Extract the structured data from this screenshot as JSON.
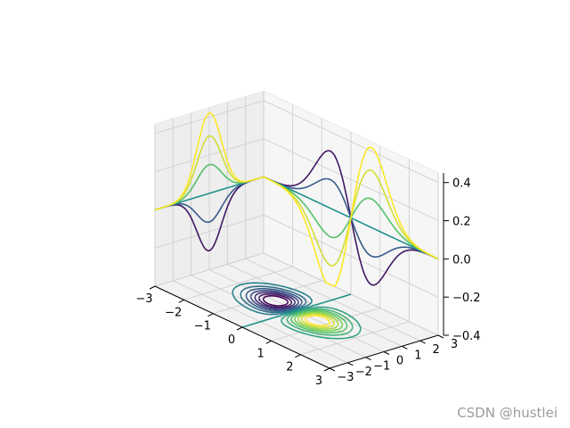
{
  "chart_data": {
    "type": "contour3d",
    "title": "",
    "xlabel": "",
    "ylabel": "",
    "zlabel": "",
    "xlim": [
      -3,
      3
    ],
    "ylim": [
      -3,
      3
    ],
    "zlim": [
      -0.4,
      0.45
    ],
    "grid": true,
    "function": "z = x * exp(-x^2 - y^2)",
    "projections": [
      "contour on floor (z offset)",
      "contour on back wall (x = -3)",
      "contour on side wall (y = 3)"
    ],
    "colormap": "viridis",
    "x_ticks": [
      "−3",
      "−2",
      "−1",
      "0",
      "1",
      "2",
      "3"
    ],
    "y_ticks": [
      "−3",
      "−2",
      "−1",
      "0",
      "1",
      "2",
      "3"
    ],
    "z_ticks": [
      "−0.4",
      "−0.2",
      "0.0",
      "0.2",
      "0.4"
    ],
    "floor_contours": {
      "levels": [
        -0.35,
        -0.3,
        -0.25,
        -0.2,
        -0.15,
        -0.1,
        -0.05,
        0,
        0.05,
        0.1,
        0.15,
        0.2,
        0.25,
        0.3,
        0.35
      ],
      "min_center": [
        -0.71,
        0
      ],
      "max_center": [
        0.71,
        0
      ]
    }
  },
  "watermark": "CSDN @hustlei"
}
